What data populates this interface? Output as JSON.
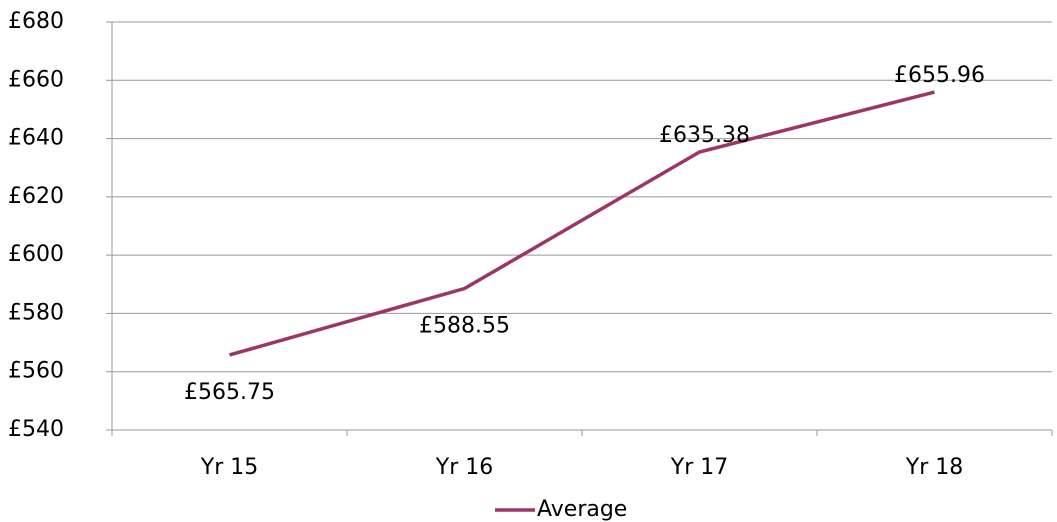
{
  "chart_data": {
    "type": "line",
    "categories": [
      "Yr 15",
      "Yr 16",
      "Yr 17",
      "Yr 18"
    ],
    "series": [
      {
        "name": "Average",
        "color": "#9b3668",
        "values": [
          565.75,
          588.55,
          635.38,
          655.96
        ],
        "value_labels": [
          "£565.75",
          "£588.55",
          "£635.38",
          "£655.96"
        ]
      }
    ],
    "ylim": [
      540,
      680
    ],
    "yticks": [
      {
        "value": 540,
        "label": "£540"
      },
      {
        "value": 560,
        "label": "£560"
      },
      {
        "value": 580,
        "label": "£580"
      },
      {
        "value": 600,
        "label": "£600"
      },
      {
        "value": 620,
        "label": "£620"
      },
      {
        "value": 640,
        "label": "£640"
      },
      {
        "value": 660,
        "label": "£660"
      },
      {
        "value": 680,
        "label": "£680"
      }
    ],
    "grid": true,
    "legend": "bottom"
  }
}
